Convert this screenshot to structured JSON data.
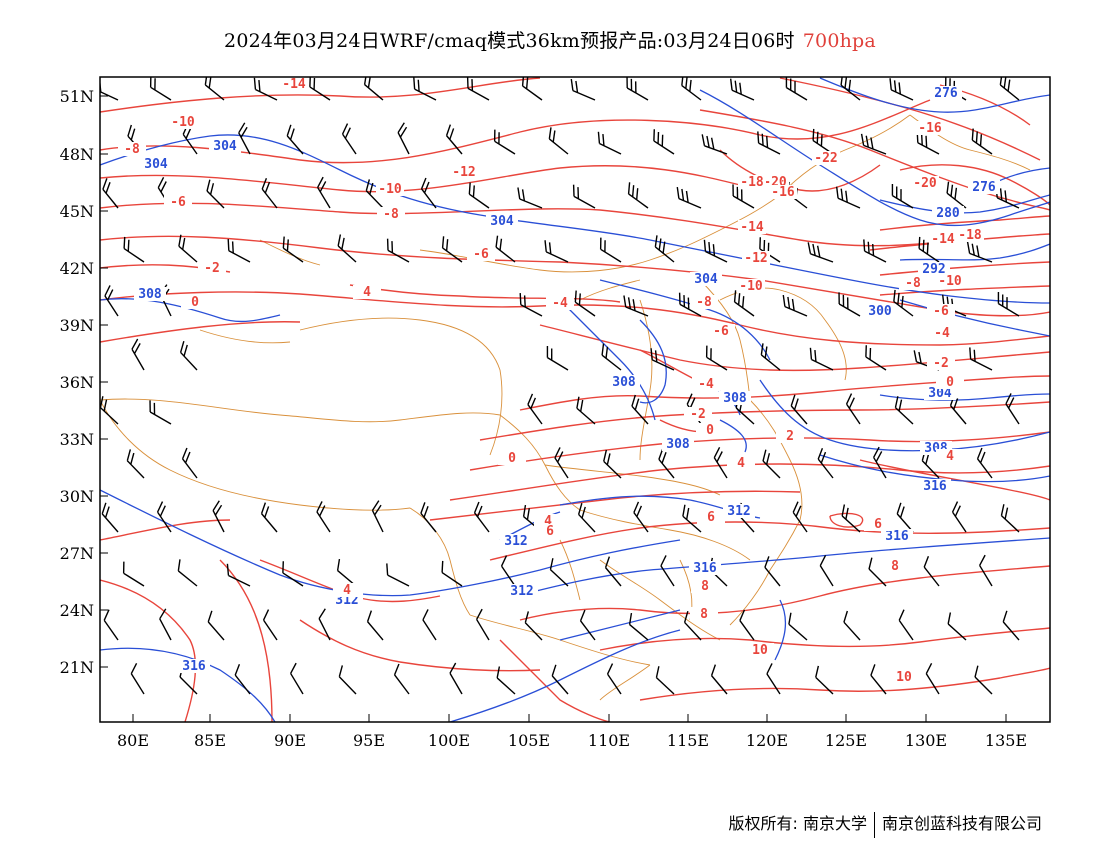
{
  "title": {
    "main": "2024年03月24日WRF/cmaq模式36km预报产品:03月24日06时",
    "level": "700hpa"
  },
  "colors": {
    "temperature": "#e8453c",
    "height": "#2a4fd6",
    "boundary": "#d9903b",
    "wind": "#000000"
  },
  "axes": {
    "x_ticks": [
      "80E",
      "85E",
      "90E",
      "95E",
      "100E",
      "105E",
      "110E",
      "115E",
      "120E",
      "125E",
      "130E",
      "135E"
    ],
    "y_ticks": [
      "51N",
      "48N",
      "45N",
      "42N",
      "39N",
      "36N",
      "33N",
      "30N",
      "27N",
      "24N",
      "21N"
    ]
  },
  "contour_labels": {
    "height": [
      "276",
      "276",
      "280",
      "292",
      "300",
      "304",
      "304",
      "304",
      "304",
      "304",
      "308",
      "308",
      "308",
      "308",
      "308",
      "312",
      "312",
      "312",
      "312",
      "316",
      "316",
      "316",
      "316"
    ],
    "temperature": [
      "-14",
      "-10",
      "-10",
      "-8",
      "-6",
      "-2",
      "0",
      "4",
      "-12",
      "-8",
      "-6",
      "-4",
      "0",
      "4",
      "4",
      "-22",
      "-20",
      "-18",
      "-16",
      "-14",
      "-12",
      "-10",
      "-8",
      "-6",
      "-4",
      "-2",
      "0",
      "2",
      "4",
      "6",
      "8",
      "10",
      "10",
      "6",
      "8",
      "-16",
      "-18",
      "-20",
      "-14",
      "-10",
      "-8",
      "-6",
      "-4",
      "-2",
      "0",
      "4",
      "6",
      "8"
    ]
  },
  "copyright": {
    "left": "版权所有: 南京大学",
    "right": "南京创蓝科技有限公司"
  }
}
